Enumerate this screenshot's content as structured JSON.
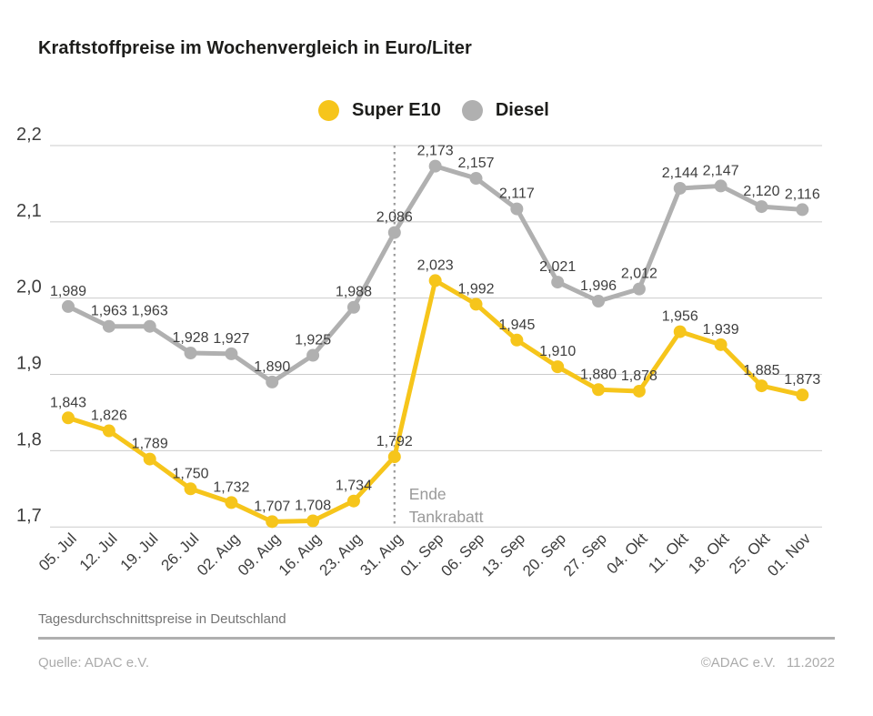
{
  "header": {
    "title": "Kraftstoffpreise im Wochenvergleich in Euro/Liter"
  },
  "chart_data": {
    "type": "line",
    "title": "Kraftstoffpreise im Wochenvergleich in Euro/Liter",
    "unit": "Euro/Liter",
    "x": [
      "05. Jul",
      "12. Jul",
      "19. Jul",
      "26. Jul",
      "02. Aug",
      "09. Aug",
      "16. Aug",
      "23. Aug",
      "31. Aug",
      "01. Sep",
      "06. Sep",
      "13. Sep",
      "20. Sep",
      "27. Sep",
      "04. Okt",
      "11. Okt",
      "18. Okt",
      "25. Okt",
      "01. Nov"
    ],
    "series": [
      {
        "name": "Super E10",
        "color": "#f6c51b",
        "values": [
          1.843,
          1.826,
          1.789,
          1.75,
          1.732,
          1.707,
          1.708,
          1.734,
          1.792,
          2.023,
          1.992,
          1.945,
          1.91,
          1.88,
          1.878,
          1.956,
          1.939,
          1.885,
          1.873
        ]
      },
      {
        "name": "Diesel",
        "color": "#b0b0b0",
        "values": [
          1.989,
          1.963,
          1.963,
          1.928,
          1.927,
          1.89,
          1.925,
          1.988,
          2.086,
          2.173,
          2.157,
          2.117,
          2.021,
          1.996,
          2.012,
          2.144,
          2.147,
          2.12,
          2.116
        ]
      }
    ],
    "ylim": [
      1.7,
      2.2
    ],
    "yticks": [
      2.2,
      2.1,
      2.0,
      1.9,
      1.8,
      1.7
    ],
    "ytick_labels": [
      "2,2",
      "2,1",
      "2,0",
      "1,9",
      "1,8",
      "1,7"
    ],
    "grid": true,
    "legend_position": "top-center",
    "decimal_separator": ",",
    "annotation": {
      "lines": [
        "Ende",
        "Tankrabatt"
      ],
      "x_index": 8,
      "marker": "dotted-vertical-line",
      "color": "#9a9a9a"
    }
  },
  "footer": {
    "note": "Tagesdurchschnittspreise in Deutschland",
    "source": "Quelle: ADAC e.V.",
    "copyright": "©ADAC e.V.",
    "date": "11.2022"
  }
}
